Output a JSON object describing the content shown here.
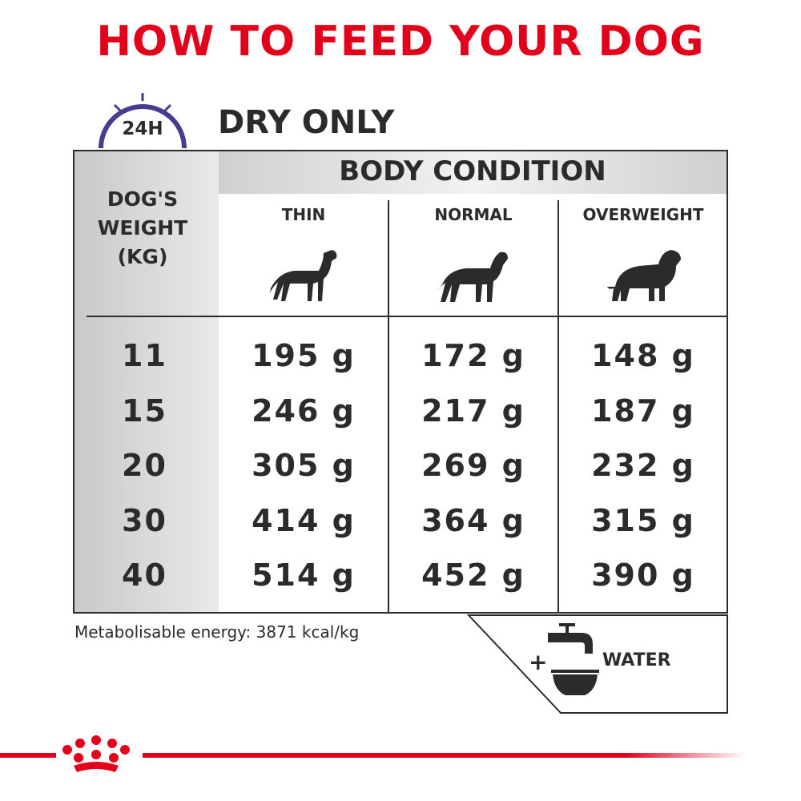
{
  "title": "HOW TO FEED YOUR DOG",
  "clock_label": "24H",
  "section": "DRY ONLY",
  "table": {
    "group_header": "BODY CONDITION",
    "row_header": [
      "DOG'S",
      "WEIGHT",
      "(KG)"
    ],
    "columns": [
      "THIN",
      "NORMAL",
      "OVERWEIGHT"
    ],
    "rows": [
      [
        "11",
        "195 g",
        "172 g",
        "148 g"
      ],
      [
        "15",
        "246 g",
        "217 g",
        "187 g"
      ],
      [
        "20",
        "305 g",
        "269 g",
        "232 g"
      ],
      [
        "30",
        "414 g",
        "364 g",
        "315 g"
      ],
      [
        "40",
        "514 g",
        "452 g",
        "390 g"
      ]
    ]
  },
  "footnote": "Metabolisable energy: 3871 kcal/kg",
  "water": {
    "plus": "+",
    "label": "WATER"
  }
}
